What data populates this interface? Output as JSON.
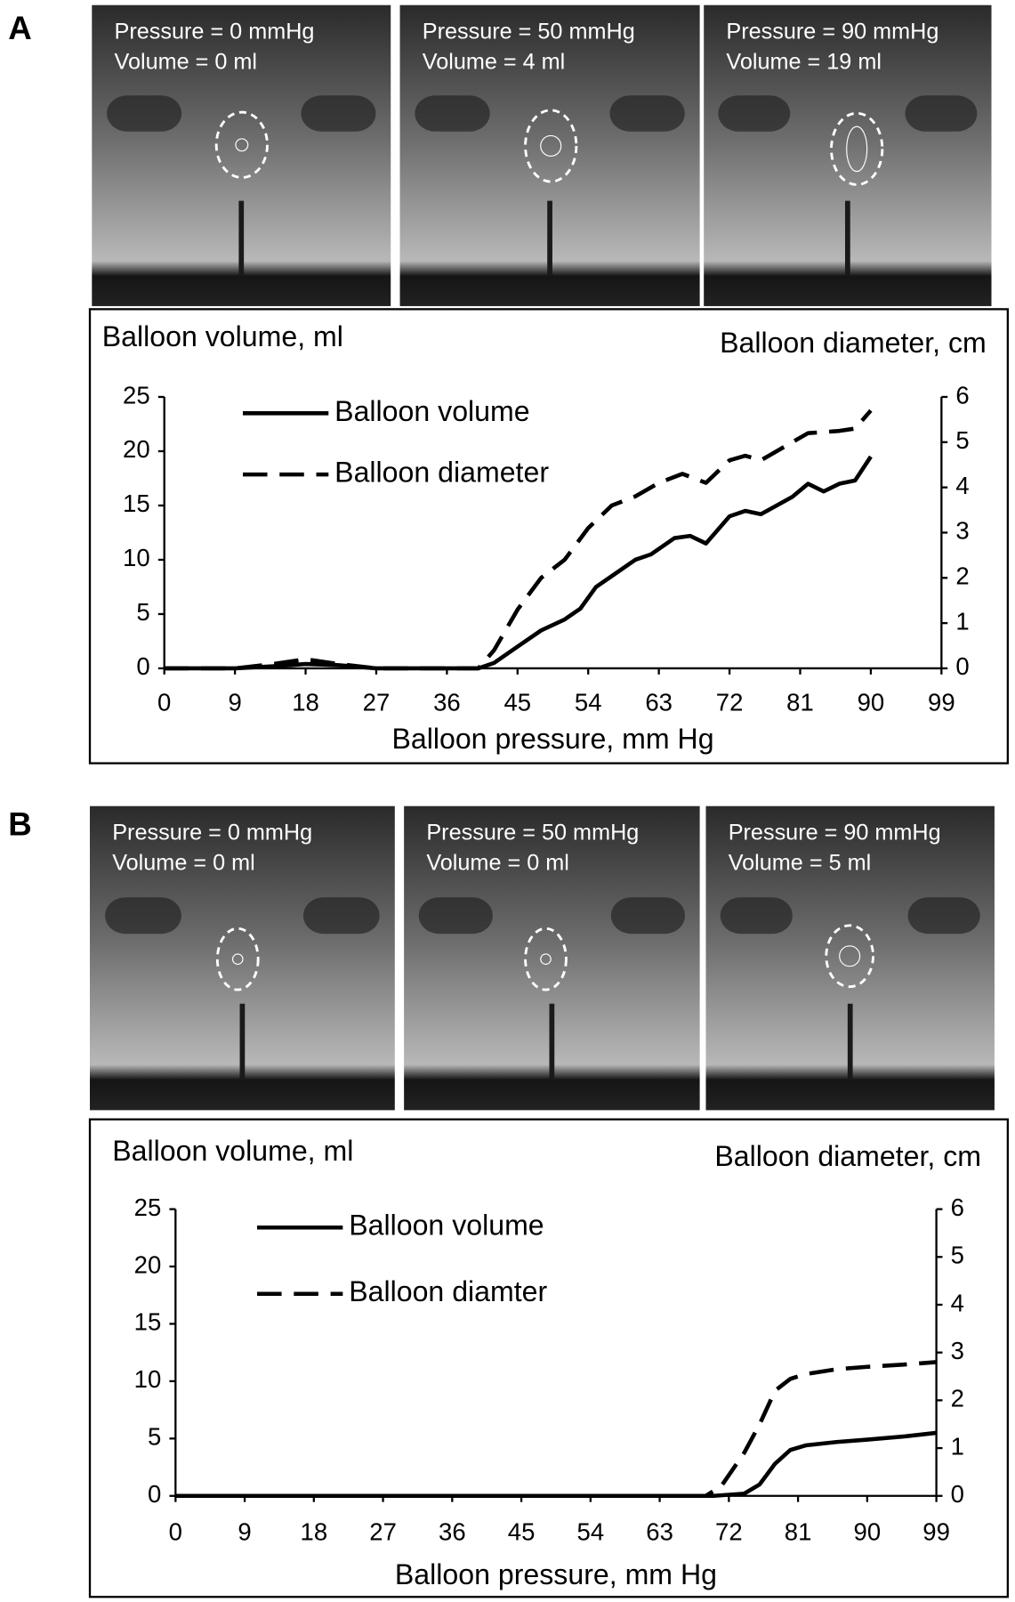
{
  "panels": [
    {
      "label": "A",
      "images": [
        {
          "lines": [
            "Pressure = 0 mmHg",
            "Volume = 0 ml"
          ]
        },
        {
          "lines": [
            "Pressure = 50 mmHg",
            "Volume = 4 ml"
          ]
        },
        {
          "lines": [
            "Pressure = 90 mmHg",
            "Volume = 19 ml"
          ]
        }
      ]
    },
    {
      "label": "B",
      "images": [
        {
          "lines": [
            "Pressure = 0 mmHg",
            "Volume = 0 ml"
          ]
        },
        {
          "lines": [
            "Pressure = 50 mmHg",
            "Volume = 0 ml"
          ]
        },
        {
          "lines": [
            "Pressure = 90 mmHg",
            "Volume = 5 ml"
          ]
        }
      ]
    }
  ],
  "chart_data": [
    {
      "type": "line",
      "ylabel": "Balloon volume, ml",
      "y2label": "Balloon diameter, cm",
      "xlabel": "Balloon pressure, mm Hg",
      "xlim": [
        0,
        99
      ],
      "xticks": [
        0,
        9,
        18,
        27,
        36,
        45,
        54,
        63,
        72,
        81,
        90,
        99
      ],
      "ylim": [
        0,
        25
      ],
      "yticks": [
        0,
        5,
        10,
        15,
        20,
        25
      ],
      "y2lim": [
        0,
        6
      ],
      "y2ticks": [
        0,
        1,
        2,
        3,
        4,
        5,
        6
      ],
      "series": [
        {
          "name": "Balloon volume",
          "color": "#000000",
          "line_style": "solid",
          "x": [
            0,
            9,
            14,
            18,
            22,
            27,
            36,
            40,
            42,
            45,
            48,
            51,
            53,
            55,
            57,
            60,
            62,
            65,
            67,
            69,
            72,
            74,
            76,
            78,
            80,
            82,
            84,
            86,
            88,
            90
          ],
          "values": [
            0,
            0,
            0.2,
            0.4,
            0.3,
            0,
            0,
            0,
            0.5,
            2,
            3.5,
            4.5,
            5.5,
            7.5,
            8.5,
            10,
            10.5,
            12,
            12.2,
            11.5,
            14,
            14.5,
            14.2,
            15,
            15.8,
            17,
            16.3,
            17,
            17.3,
            19.5
          ]
        },
        {
          "name": "Balloon diameter",
          "color": "#000000",
          "line_style": "dashed",
          "axis": "y2",
          "x": [
            0,
            9,
            14,
            18,
            22,
            27,
            36,
            40,
            42,
            45,
            48,
            51,
            54,
            57,
            60,
            63,
            66,
            69,
            72,
            74,
            76,
            78,
            80,
            82,
            86,
            88,
            90
          ],
          "values": [
            0,
            0,
            0.1,
            0.2,
            0.1,
            0,
            0,
            0,
            0.4,
            1.3,
            2,
            2.4,
            3.1,
            3.6,
            3.8,
            4.1,
            4.3,
            4.1,
            4.6,
            4.7,
            4.6,
            4.8,
            5,
            5.2,
            5.25,
            5.3,
            5.7
          ]
        }
      ]
    },
    {
      "type": "line",
      "ylabel": "Balloon volume, ml",
      "y2label": "Balloon diameter, cm",
      "xlabel": "Balloon pressure, mm Hg",
      "xlim": [
        0,
        99
      ],
      "xticks": [
        0,
        9,
        18,
        27,
        36,
        45,
        54,
        63,
        72,
        81,
        90,
        99
      ],
      "ylim": [
        0,
        25
      ],
      "yticks": [
        0,
        5,
        10,
        15,
        20,
        25
      ],
      "y2lim": [
        0,
        6
      ],
      "y2ticks": [
        0,
        1,
        2,
        3,
        4,
        5,
        6
      ],
      "series": [
        {
          "name": "Balloon volume",
          "color": "#000000",
          "line_style": "solid",
          "x": [
            0,
            70,
            74,
            76,
            78,
            80,
            82,
            86,
            90,
            95,
            99
          ],
          "values": [
            0,
            0,
            0.2,
            1,
            2.8,
            4,
            4.4,
            4.7,
            4.9,
            5.2,
            5.5
          ]
        },
        {
          "name": "Balloon diamter",
          "color": "#000000",
          "line_style": "dashed",
          "axis": "y2",
          "x": [
            0,
            69,
            71,
            74,
            76,
            78,
            80,
            82,
            86,
            90,
            95,
            99
          ],
          "values": [
            0,
            0,
            0.2,
            0.9,
            1.5,
            2.2,
            2.45,
            2.55,
            2.65,
            2.7,
            2.75,
            2.8
          ]
        }
      ]
    }
  ]
}
